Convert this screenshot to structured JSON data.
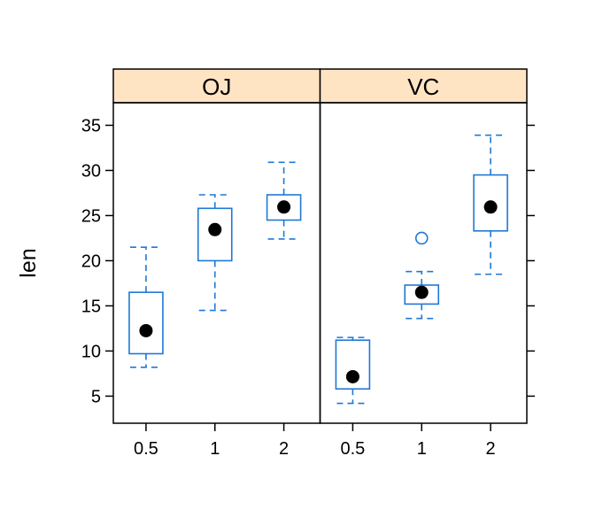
{
  "chart_data": {
    "type": "boxplot",
    "ylabel": "len",
    "xlabel": "",
    "ylim": [
      2,
      37.5
    ],
    "y_ticks": [
      5,
      10,
      15,
      20,
      25,
      30,
      35
    ],
    "y_tick_labels": [
      "5",
      "10",
      "15",
      "20",
      "25",
      "30",
      "35"
    ],
    "categories": [
      "0.5",
      "1",
      "2"
    ],
    "box_color": "#1f78d6",
    "median_marker_color": "#000000",
    "strip_color": "#ffe4c4",
    "panels": [
      {
        "label": "OJ",
        "boxes": [
          {
            "category": "0.5",
            "whisker_low": 8.2,
            "q1": 9.7,
            "median": 12.25,
            "q3": 16.5,
            "whisker_high": 21.5,
            "outliers": []
          },
          {
            "category": "1",
            "whisker_low": 14.5,
            "q1": 20.0,
            "median": 23.45,
            "q3": 25.8,
            "whisker_high": 27.3,
            "outliers": []
          },
          {
            "category": "2",
            "whisker_low": 22.4,
            "q1": 24.5,
            "median": 25.95,
            "q3": 27.3,
            "whisker_high": 30.9,
            "outliers": []
          }
        ]
      },
      {
        "label": "VC",
        "boxes": [
          {
            "category": "0.5",
            "whisker_low": 4.2,
            "q1": 5.8,
            "median": 7.15,
            "q3": 11.2,
            "whisker_high": 11.5,
            "outliers": []
          },
          {
            "category": "1",
            "whisker_low": 13.6,
            "q1": 15.2,
            "median": 16.5,
            "q3": 17.3,
            "whisker_high": 18.8,
            "outliers": [
              22.5
            ]
          },
          {
            "category": "2",
            "whisker_low": 18.5,
            "q1": 23.3,
            "median": 25.95,
            "q3": 29.5,
            "whisker_high": 33.9,
            "outliers": []
          }
        ]
      }
    ]
  }
}
